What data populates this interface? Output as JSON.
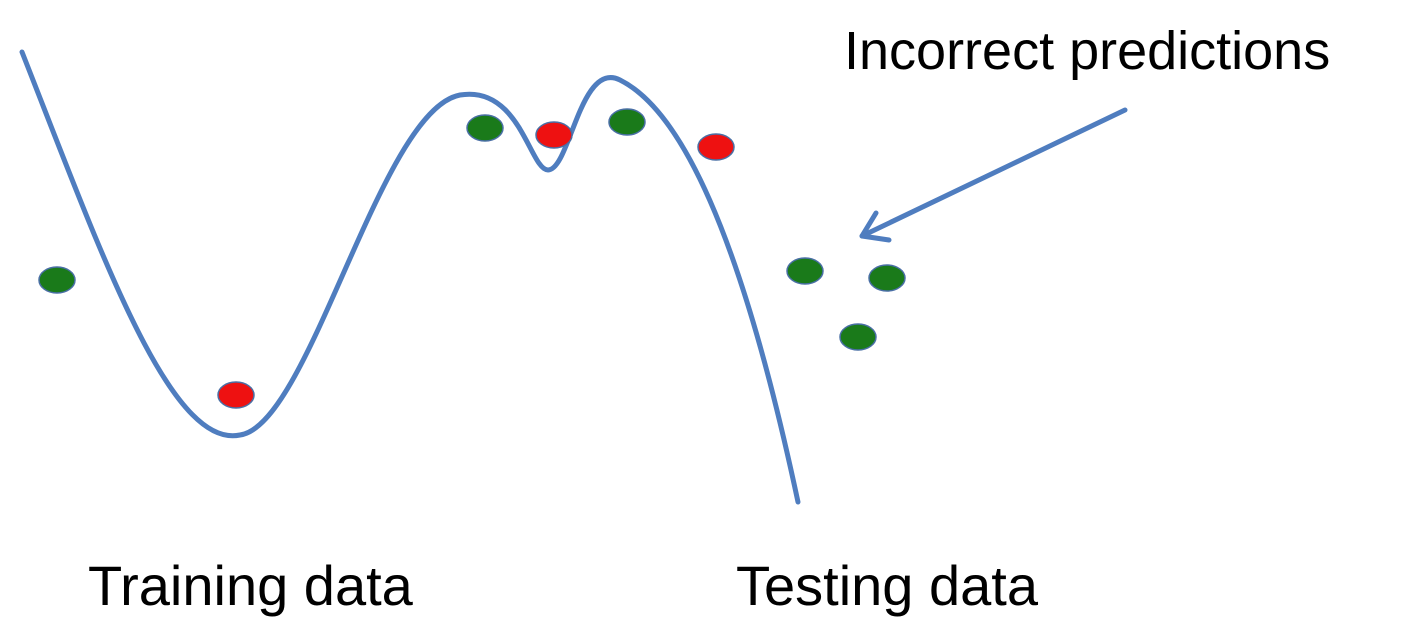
{
  "labels": {
    "incorrect_predictions": "Incorrect predictions",
    "training_data": "Training data",
    "testing_data": "Testing data"
  },
  "colors": {
    "curve": "#4f7dbf",
    "arrow": "#4f7dbf",
    "correct_point": "#1a7a1a",
    "incorrect_point": "#ee1111",
    "point_outline": "#4a6fa5"
  },
  "points": {
    "training": [
      {
        "label": "correct"
      },
      {
        "label": "incorrect"
      },
      {
        "label": "correct"
      },
      {
        "label": "incorrect"
      },
      {
        "label": "correct"
      },
      {
        "label": "incorrect"
      }
    ],
    "testing": [
      {
        "label": "correct"
      },
      {
        "label": "correct"
      },
      {
        "label": "correct"
      }
    ]
  }
}
